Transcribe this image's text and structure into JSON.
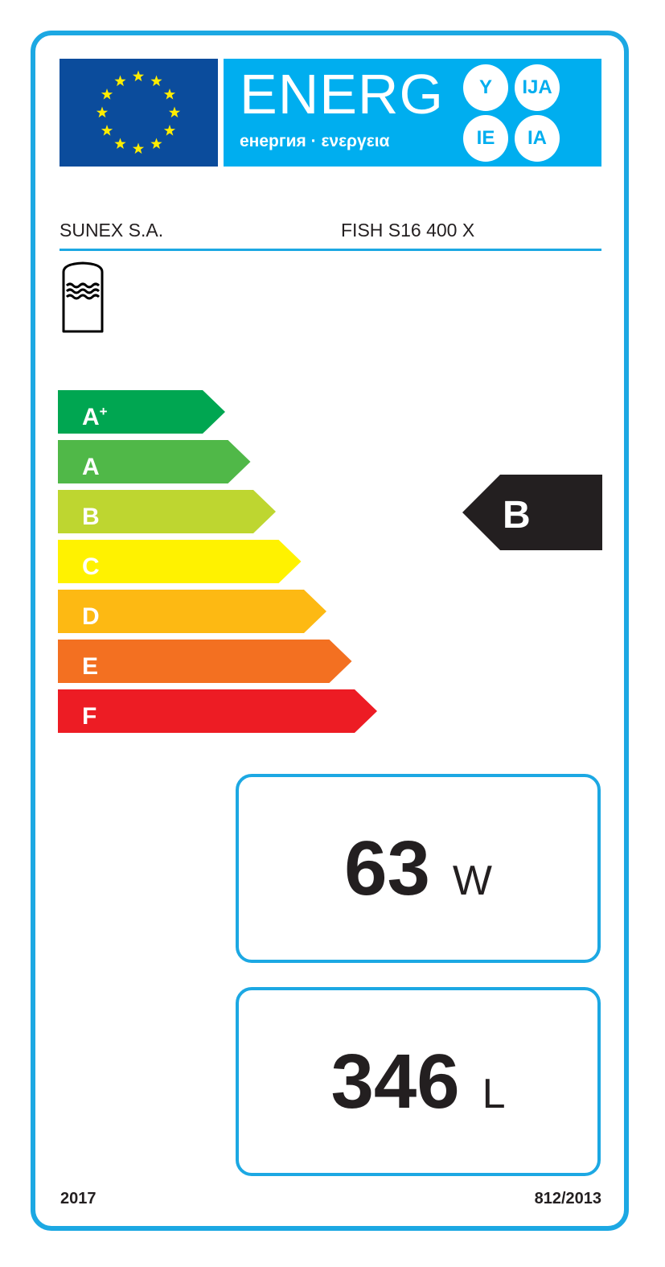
{
  "header": {
    "title": "ENERG",
    "subtitle": "енергия · ενεργεια",
    "circles": [
      "Y",
      "IJA",
      "IE",
      "IA"
    ],
    "flag_color": "#0b4c9c",
    "panel_color": "#00aeef"
  },
  "supplier": "SUNEX S.A.",
  "model": "FISH S16 400 X",
  "appliance_icon": "water-tank-icon",
  "scale": [
    {
      "label": "A",
      "sup": "+",
      "color": "#00a651"
    },
    {
      "label": "A",
      "sup": "",
      "color": "#50b848"
    },
    {
      "label": "B",
      "sup": "",
      "color": "#bed630"
    },
    {
      "label": "C",
      "sup": "",
      "color": "#fff200"
    },
    {
      "label": "D",
      "sup": "",
      "color": "#fdb913"
    },
    {
      "label": "E",
      "sup": "",
      "color": "#f37021"
    },
    {
      "label": "F",
      "sup": "",
      "color": "#ed1c24"
    }
  ],
  "rating": {
    "class": "B",
    "color": "#231f20"
  },
  "standing_loss": {
    "value": "63",
    "unit": "W"
  },
  "volume": {
    "value": "346",
    "unit": "L"
  },
  "footer": {
    "year": "2017",
    "regulation": "812/2013"
  },
  "accent": "#1ca8e3"
}
